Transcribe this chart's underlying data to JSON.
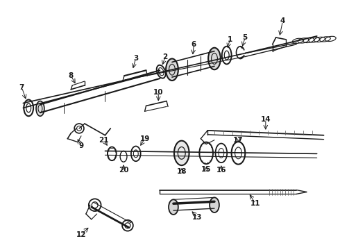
{
  "bg_color": "#ffffff",
  "fig_width": 4.9,
  "fig_height": 3.6,
  "dpi": 100,
  "lc": "#1a1a1a",
  "gray": "#555555"
}
